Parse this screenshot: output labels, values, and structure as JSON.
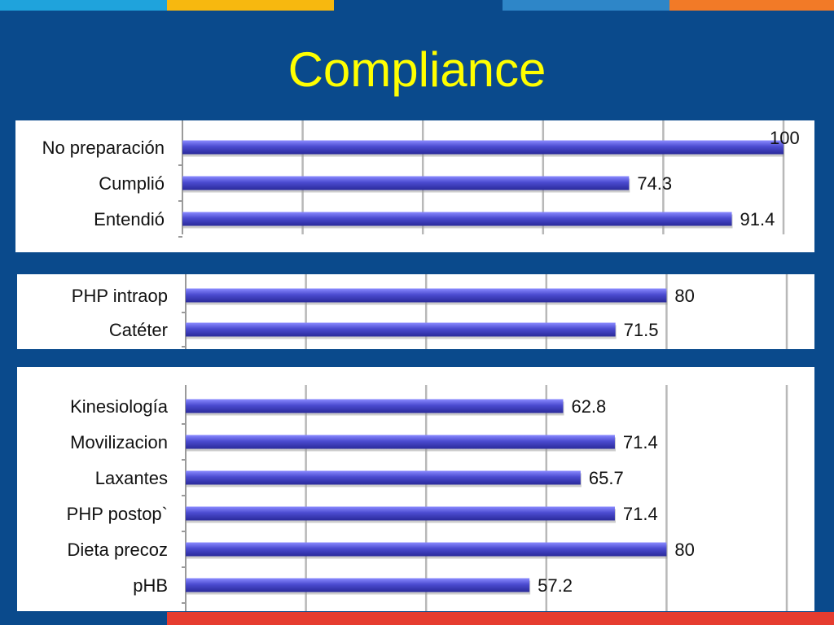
{
  "slide": {
    "title": "Compliance",
    "stripe_colors": [
      "#1fa3dc",
      "#f7b80f",
      "#0a4a8c",
      "#2e86c8",
      "#f27a27"
    ],
    "bottom_colors": [
      "#0a4a8c",
      "#e63c2f"
    ]
  },
  "chart_data": [
    {
      "type": "bar",
      "orientation": "horizontal",
      "categories": [
        "No preparación",
        "Cumplió",
        "Entendió"
      ],
      "values": [
        100,
        74.3,
        91.4
      ],
      "data_labels": [
        "100",
        "74.3",
        "91.4"
      ],
      "xlim": [
        0,
        100
      ],
      "grid": true,
      "bar_color": "#4b4bd0"
    },
    {
      "type": "bar",
      "orientation": "horizontal",
      "categories": [
        "PHP intraop",
        "Catéter"
      ],
      "values": [
        80,
        71.5
      ],
      "data_labels": [
        "80",
        "71.5"
      ],
      "xlim": [
        0,
        100
      ],
      "grid": true,
      "bar_color": "#4b4bd0"
    },
    {
      "type": "bar",
      "orientation": "horizontal",
      "categories": [
        "Kinesiología",
        "Movilizacion",
        "Laxantes",
        "PHP postop`",
        "Dieta precoz",
        "pHB"
      ],
      "values": [
        62.8,
        71.4,
        65.7,
        71.4,
        80,
        57.2
      ],
      "data_labels": [
        "62.8",
        "71.4",
        "65.7",
        "71.4",
        "80",
        "57.2"
      ],
      "xlim": [
        0,
        100
      ],
      "grid": true,
      "bar_color": "#4b4bd0"
    }
  ]
}
